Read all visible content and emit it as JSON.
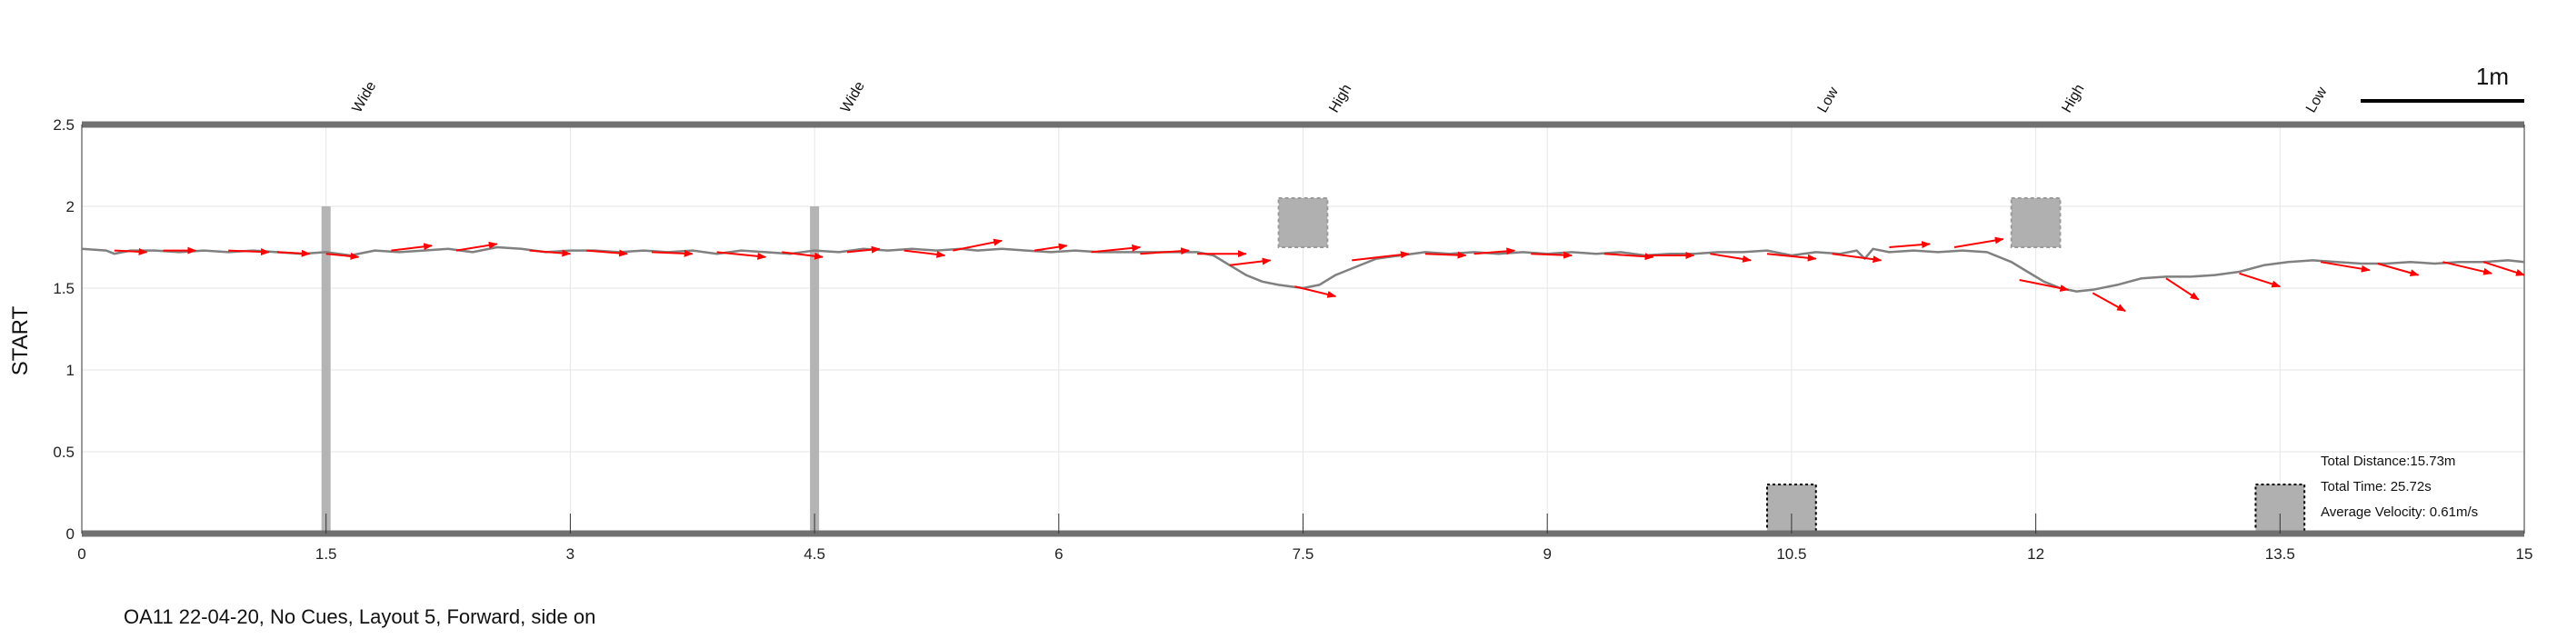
{
  "chart_data": {
    "type": "line",
    "ylabel": "START",
    "xlim": [
      0,
      15
    ],
    "ylim": [
      0,
      2.5
    ],
    "x_ticks": [
      0,
      1.5,
      3,
      4.5,
      6,
      7.5,
      9,
      10.5,
      12,
      13.5,
      15
    ],
    "y_ticks": [
      0,
      0.5,
      1,
      1.5,
      2,
      2.5
    ],
    "x_tick_labels": [
      "0",
      "1.5",
      "3",
      "4.5",
      "6",
      "7.5",
      "9",
      "10.5",
      "12",
      "13.5",
      "15"
    ],
    "y_tick_labels": [
      "0",
      "0.5",
      "1",
      "1.5",
      "2",
      "2.5"
    ],
    "grid": true,
    "scale_bar_label": "1m",
    "cue_labels": [
      {
        "x": 1.5,
        "text": "Wide"
      },
      {
        "x": 4.5,
        "text": "Wide"
      },
      {
        "x": 7.5,
        "text": "High"
      },
      {
        "x": 10.5,
        "text": "Low"
      },
      {
        "x": 12.0,
        "text": "High"
      },
      {
        "x": 13.5,
        "text": "Low"
      }
    ],
    "obstacles": [
      {
        "type": "wide",
        "x": 1.5,
        "y0": 0,
        "y1": 2
      },
      {
        "type": "wide",
        "x": 4.5,
        "y0": 0,
        "y1": 2
      },
      {
        "type": "high",
        "x0": 7.35,
        "x1": 7.65,
        "y0": 1.75,
        "y1": 2.05
      },
      {
        "type": "low",
        "x0": 10.35,
        "x1": 10.65,
        "y0": 0,
        "y1": 0.3
      },
      {
        "type": "high",
        "x0": 11.85,
        "x1": 12.15,
        "y0": 1.75,
        "y1": 2.05
      },
      {
        "type": "low",
        "x0": 13.35,
        "x1": 13.65,
        "y0": 0,
        "y1": 0.3
      }
    ],
    "series": [
      {
        "color": "#808080",
        "x": [
          0.0,
          0.15,
          0.2,
          0.3,
          0.45,
          0.6,
          0.75,
          0.9,
          1.05,
          1.2,
          1.35,
          1.5,
          1.65,
          1.8,
          1.95,
          2.1,
          2.25,
          2.4,
          2.55,
          2.7,
          2.85,
          3.0,
          3.15,
          3.3,
          3.45,
          3.6,
          3.75,
          3.9,
          4.05,
          4.2,
          4.35,
          4.5,
          4.65,
          4.8,
          4.95,
          5.1,
          5.25,
          5.4,
          5.5,
          5.65,
          5.8,
          5.95,
          6.1,
          6.25,
          6.4,
          6.55,
          6.7,
          6.85,
          6.95,
          7.05,
          7.15,
          7.25,
          7.35,
          7.5,
          7.6,
          7.7,
          7.8,
          7.95,
          8.1,
          8.25,
          8.4,
          8.55,
          8.7,
          8.85,
          9.0,
          9.15,
          9.3,
          9.45,
          9.6,
          9.75,
          9.9,
          10.05,
          10.2,
          10.35,
          10.5,
          10.65,
          10.8,
          10.9,
          10.95,
          11.0,
          11.1,
          11.25,
          11.4,
          11.55,
          11.7,
          11.85,
          11.95,
          12.05,
          12.15,
          12.25,
          12.35,
          12.5,
          12.65,
          12.8,
          12.95,
          13.1,
          13.25,
          13.4,
          13.55,
          13.7,
          13.85,
          14.0,
          14.15,
          14.3,
          14.45,
          14.6,
          14.75,
          14.9,
          15.0
        ],
        "y": [
          1.74,
          1.73,
          1.71,
          1.73,
          1.73,
          1.72,
          1.73,
          1.72,
          1.73,
          1.72,
          1.71,
          1.72,
          1.7,
          1.73,
          1.72,
          1.73,
          1.74,
          1.72,
          1.75,
          1.74,
          1.72,
          1.73,
          1.73,
          1.72,
          1.73,
          1.72,
          1.73,
          1.71,
          1.73,
          1.72,
          1.71,
          1.73,
          1.72,
          1.74,
          1.73,
          1.74,
          1.73,
          1.74,
          1.73,
          1.74,
          1.73,
          1.72,
          1.73,
          1.72,
          1.72,
          1.72,
          1.72,
          1.72,
          1.7,
          1.64,
          1.58,
          1.54,
          1.52,
          1.5,
          1.52,
          1.58,
          1.62,
          1.68,
          1.7,
          1.72,
          1.71,
          1.72,
          1.71,
          1.72,
          1.71,
          1.72,
          1.71,
          1.72,
          1.7,
          1.71,
          1.71,
          1.72,
          1.72,
          1.73,
          1.7,
          1.72,
          1.71,
          1.73,
          1.68,
          1.74,
          1.72,
          1.73,
          1.72,
          1.73,
          1.72,
          1.66,
          1.6,
          1.54,
          1.5,
          1.48,
          1.49,
          1.52,
          1.56,
          1.57,
          1.57,
          1.58,
          1.6,
          1.64,
          1.66,
          1.67,
          1.66,
          1.65,
          1.65,
          1.66,
          1.65,
          1.66,
          1.66,
          1.67,
          1.66
        ]
      }
    ],
    "direction_arrows": [
      {
        "x": 0.2,
        "y": 1.73,
        "dx": 0.2,
        "dy": -0.01
      },
      {
        "x": 0.5,
        "y": 1.73,
        "dx": 0.2,
        "dy": 0.0
      },
      {
        "x": 0.9,
        "y": 1.73,
        "dx": 0.25,
        "dy": -0.01
      },
      {
        "x": 1.2,
        "y": 1.72,
        "dx": 0.2,
        "dy": -0.01
      },
      {
        "x": 1.5,
        "y": 1.71,
        "dx": 0.2,
        "dy": -0.02
      },
      {
        "x": 1.9,
        "y": 1.73,
        "dx": 0.25,
        "dy": 0.03
      },
      {
        "x": 2.3,
        "y": 1.73,
        "dx": 0.25,
        "dy": 0.04
      },
      {
        "x": 2.75,
        "y": 1.73,
        "dx": 0.25,
        "dy": -0.02
      },
      {
        "x": 3.1,
        "y": 1.73,
        "dx": 0.25,
        "dy": -0.02
      },
      {
        "x": 3.5,
        "y": 1.72,
        "dx": 0.25,
        "dy": -0.01
      },
      {
        "x": 3.9,
        "y": 1.72,
        "dx": 0.3,
        "dy": -0.03
      },
      {
        "x": 4.3,
        "y": 1.72,
        "dx": 0.25,
        "dy": -0.03
      },
      {
        "x": 4.7,
        "y": 1.72,
        "dx": 0.2,
        "dy": 0.02
      },
      {
        "x": 5.05,
        "y": 1.73,
        "dx": 0.25,
        "dy": -0.03
      },
      {
        "x": 5.35,
        "y": 1.73,
        "dx": 0.3,
        "dy": 0.06
      },
      {
        "x": 5.85,
        "y": 1.73,
        "dx": 0.2,
        "dy": 0.03
      },
      {
        "x": 6.2,
        "y": 1.72,
        "dx": 0.3,
        "dy": 0.03
      },
      {
        "x": 6.5,
        "y": 1.71,
        "dx": 0.3,
        "dy": 0.02
      },
      {
        "x": 6.85,
        "y": 1.71,
        "dx": 0.3,
        "dy": 0.0
      },
      {
        "x": 7.05,
        "y": 1.64,
        "dx": 0.25,
        "dy": 0.03
      },
      {
        "x": 7.45,
        "y": 1.51,
        "dx": 0.25,
        "dy": -0.06
      },
      {
        "x": 7.8,
        "y": 1.67,
        "dx": 0.35,
        "dy": 0.04
      },
      {
        "x": 8.25,
        "y": 1.71,
        "dx": 0.25,
        "dy": -0.01
      },
      {
        "x": 8.55,
        "y": 1.71,
        "dx": 0.25,
        "dy": 0.02
      },
      {
        "x": 8.9,
        "y": 1.71,
        "dx": 0.25,
        "dy": -0.01
      },
      {
        "x": 9.35,
        "y": 1.71,
        "dx": 0.3,
        "dy": -0.02
      },
      {
        "x": 9.6,
        "y": 1.7,
        "dx": 0.3,
        "dy": 0.0
      },
      {
        "x": 10.0,
        "y": 1.71,
        "dx": 0.25,
        "dy": -0.04
      },
      {
        "x": 10.35,
        "y": 1.71,
        "dx": 0.3,
        "dy": -0.03
      },
      {
        "x": 10.75,
        "y": 1.71,
        "dx": 0.3,
        "dy": -0.04
      },
      {
        "x": 11.1,
        "y": 1.75,
        "dx": 0.25,
        "dy": 0.02
      },
      {
        "x": 11.5,
        "y": 1.75,
        "dx": 0.3,
        "dy": 0.05
      },
      {
        "x": 11.9,
        "y": 1.55,
        "dx": 0.3,
        "dy": -0.06
      },
      {
        "x": 12.35,
        "y": 1.47,
        "dx": 0.2,
        "dy": -0.11
      },
      {
        "x": 12.8,
        "y": 1.56,
        "dx": 0.2,
        "dy": -0.13
      },
      {
        "x": 13.25,
        "y": 1.59,
        "dx": 0.25,
        "dy": -0.08
      },
      {
        "x": 13.75,
        "y": 1.66,
        "dx": 0.3,
        "dy": -0.05
      },
      {
        "x": 14.1,
        "y": 1.65,
        "dx": 0.25,
        "dy": -0.07
      },
      {
        "x": 14.5,
        "y": 1.66,
        "dx": 0.3,
        "dy": -0.07
      },
      {
        "x": 14.75,
        "y": 1.66,
        "dx": 0.25,
        "dy": -0.08
      }
    ],
    "stats": {
      "distance": "Total Distance:15.73m",
      "time": "Total Time: 25.72s",
      "velocity": "Average Velocity: 0.61m/s"
    }
  },
  "caption": "OA11 22-04-20, No Cues, Layout 5, Forward, side on"
}
